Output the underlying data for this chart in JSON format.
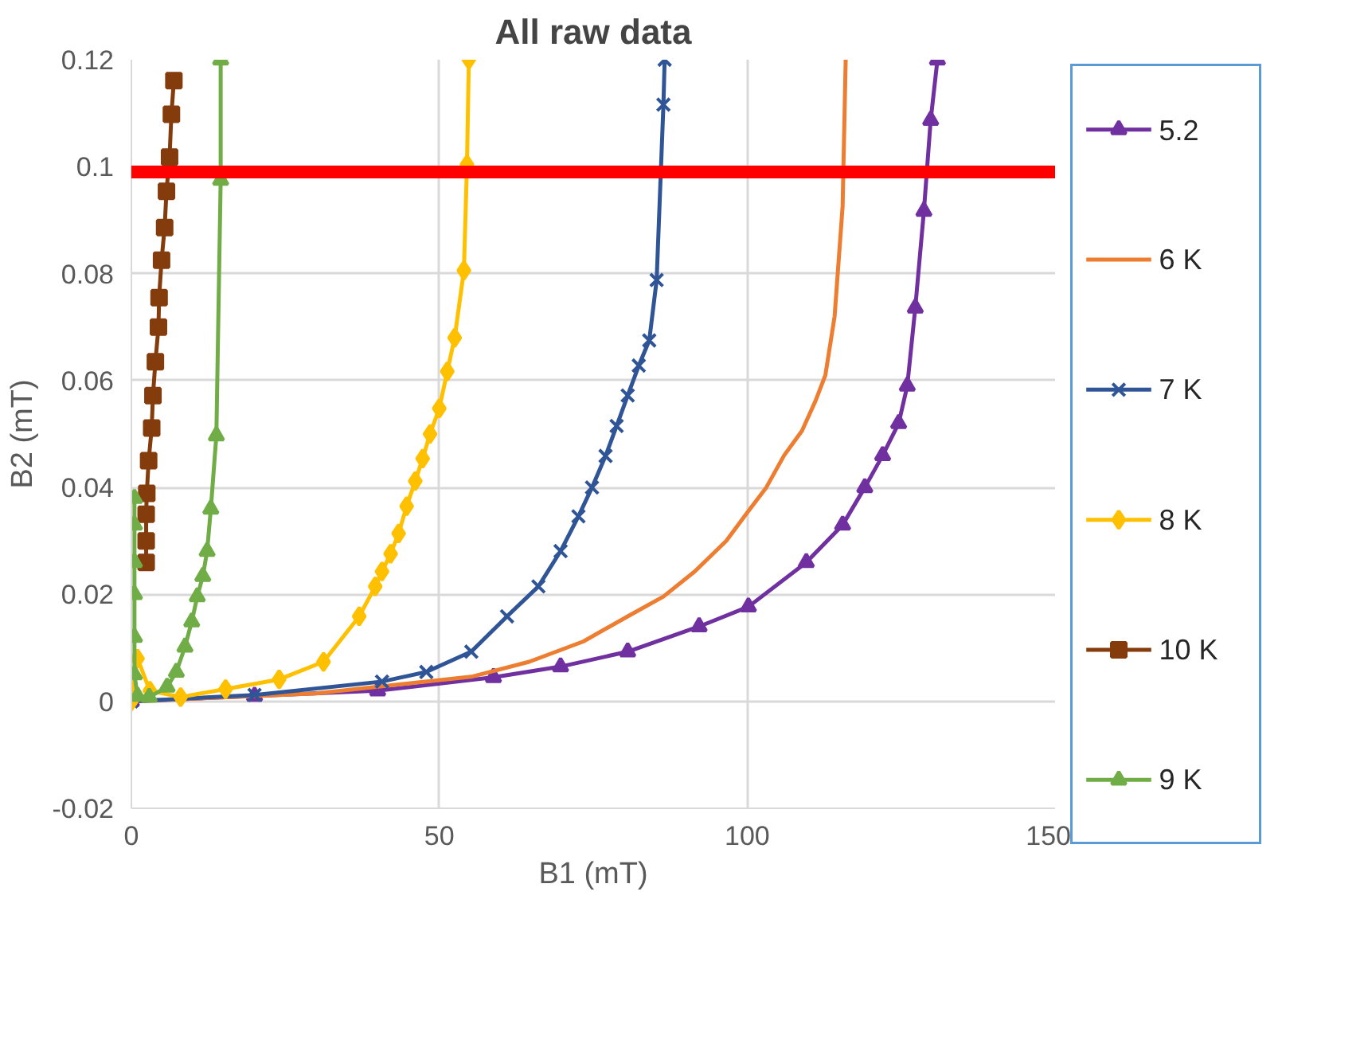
{
  "chart_data": {
    "type": "line",
    "title": "All raw data",
    "xlabel": "B1 (mT)",
    "ylabel": "B2 (mT)",
    "xlim": [
      0,
      150
    ],
    "xticks": [
      0,
      50,
      100,
      150
    ],
    "ylim": [
      -0.02,
      0.12
    ],
    "yticks": [
      -0.02,
      0,
      0.02,
      0.04,
      0.06,
      0.08,
      0.1,
      0.12
    ],
    "grid": true,
    "legend": "right",
    "line_style": "solid",
    "ref_lines": [
      {
        "axis": "y",
        "value": 0.099,
        "color": "#ff0000"
      }
    ],
    "series": [
      {
        "name": "5.2",
        "color": "#7030a0",
        "marker": "triangle",
        "x": [
          0,
          20,
          40,
          58.8,
          69.7,
          80.6,
          92.2,
          100.2,
          109.6,
          115.5,
          119.1,
          122.0,
          124.6,
          126.0,
          127.3,
          128.7,
          129.8,
          130.9
        ],
        "values": [
          0,
          0.001,
          0.002,
          0.0045,
          0.0065,
          0.0093,
          0.014,
          0.0177,
          0.026,
          0.033,
          0.04,
          0.046,
          0.052,
          0.059,
          0.0736,
          0.0917,
          0.1087,
          0.12
        ]
      },
      {
        "name": "6 K",
        "color": "#ed7d31",
        "marker": "none",
        "x": [
          0,
          30,
          55.2,
          64.6,
          73.4,
          80.6,
          86.4,
          91.5,
          96.6,
          100.2,
          103.1,
          106.0,
          108.9,
          111.1,
          112.7,
          114.2,
          115.5,
          116.0
        ],
        "values": [
          0,
          0.0015,
          0.0046,
          0.0074,
          0.0112,
          0.0159,
          0.0196,
          0.0243,
          0.03,
          0.0356,
          0.04,
          0.046,
          0.0506,
          0.0562,
          0.061,
          0.072,
          0.0926,
          0.12
        ]
      },
      {
        "name": "7 K",
        "color": "#2f5597",
        "marker": "cross",
        "x": [
          0,
          20,
          40.7,
          47.9,
          55.2,
          61.0,
          66.1,
          69.7,
          72.6,
          74.8,
          77.0,
          78.8,
          80.6,
          82.4,
          84.1,
          85.3,
          86.4,
          86.6
        ],
        "values": [
          0,
          0.0012,
          0.0037,
          0.0055,
          0.0093,
          0.0159,
          0.0215,
          0.0281,
          0.0346,
          0.04,
          0.0459,
          0.0515,
          0.0572,
          0.0628,
          0.0675,
          0.0788,
          0.1116,
          0.12
        ]
      },
      {
        "name": "8 K",
        "color": "#ffc000",
        "marker": "diamond",
        "x": [
          0,
          1,
          3,
          8.0,
          15.3,
          24.0,
          31.2,
          37.0,
          39.6,
          40.7,
          42.1,
          43.4,
          44.7,
          46.1,
          47.3,
          48.5,
          50.0,
          51.3,
          52.5,
          54.0,
          54.5,
          54.8
        ],
        "values": [
          0,
          0.008,
          0.002,
          0.0008,
          0.0023,
          0.0041,
          0.0074,
          0.0159,
          0.0215,
          0.0243,
          0.0276,
          0.0314,
          0.0365,
          0.0412,
          0.0454,
          0.05,
          0.0548,
          0.0617,
          0.068,
          0.0806,
          0.1004,
          0.12
        ]
      },
      {
        "name": "10 K",
        "color": "#843c0c",
        "marker": "square",
        "x": [
          2.4,
          2.4,
          2.4,
          2.5,
          2.8,
          3.3,
          3.5,
          3.9,
          4.4,
          4.5,
          4.9,
          5.4,
          5.7,
          6.2,
          6.5,
          6.9
        ],
        "values": [
          0.026,
          0.03,
          0.035,
          0.0389,
          0.045,
          0.0511,
          0.0572,
          0.0635,
          0.07,
          0.0755,
          0.0825,
          0.0886,
          0.0954,
          0.1018,
          0.1098,
          0.1161
        ]
      },
      {
        "name": "9 K",
        "color": "#70ad47",
        "marker": "triangle",
        "x": [
          0.5,
          0.5,
          0.5,
          0.5,
          0.5,
          0.5,
          1,
          2.9,
          5.8,
          7.3,
          8.7,
          9.8,
          10.7,
          11.6,
          12.3,
          12.9,
          13.8,
          14.5,
          14.5
        ],
        "values": [
          0.038,
          0.033,
          0.026,
          0.02,
          0.012,
          0.005,
          0.001,
          0.0008,
          0.0027,
          0.0055,
          0.0102,
          0.0149,
          0.0196,
          0.0234,
          0.0281,
          0.036,
          0.0497,
          0.0975,
          0.12
        ]
      }
    ]
  }
}
